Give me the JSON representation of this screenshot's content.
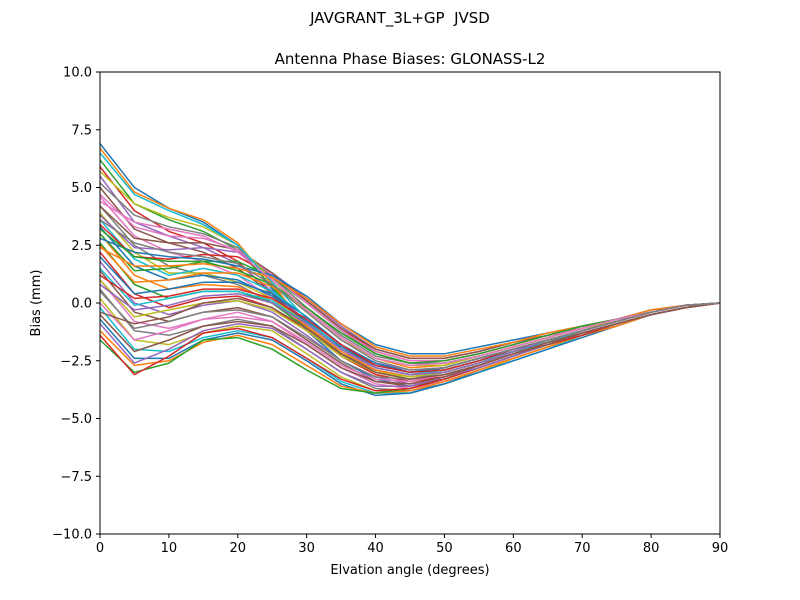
{
  "figure_title": "JAVGRANT_3L+GP  JVSD",
  "chart_data": {
    "type": "line",
    "title": "Antenna Phase Biases: GLONASS-L2",
    "xlabel": "Elvation angle (degrees)",
    "ylabel": "Bias (mm)",
    "xlim": [
      0,
      90
    ],
    "ylim": [
      -10,
      10
    ],
    "xticks": [
      0,
      10,
      20,
      30,
      40,
      50,
      60,
      70,
      80,
      90
    ],
    "xtick_labels": [
      "0",
      "10",
      "20",
      "30",
      "40",
      "50",
      "60",
      "70",
      "80",
      "90"
    ],
    "yticks": [
      -10,
      -7.5,
      -5,
      -2.5,
      0,
      2.5,
      5,
      7.5,
      10
    ],
    "ytick_labels": [
      "−10.0",
      "−7.5",
      "−5.0",
      "−2.5",
      "0.0",
      "2.5",
      "5.0",
      "7.5",
      "10.0"
    ],
    "grid": false,
    "legend": false,
    "colors": [
      "#1f77b4",
      "#ff7f0e",
      "#2ca02c",
      "#d62728",
      "#9467bd",
      "#8c564b",
      "#e377c2",
      "#7f7f7f",
      "#bcbd22",
      "#17becf"
    ],
    "x": [
      0,
      5,
      10,
      15,
      20,
      25,
      30,
      35,
      40,
      45,
      50,
      55,
      60,
      65,
      70,
      75,
      80,
      85,
      90
    ],
    "series": [
      {
        "values": [
          6.9,
          5.0,
          4.1,
          3.5,
          2.5,
          0.6,
          -1.2,
          -2.5,
          -3.3,
          -3.6,
          -3.3,
          -2.8,
          -2.3,
          -1.8,
          -1.3,
          -0.9,
          -0.5,
          -0.2,
          0.0
        ]
      },
      {
        "values": [
          6.7,
          4.8,
          4.1,
          3.6,
          2.6,
          0.8,
          -1.0,
          -2.3,
          -3.1,
          -3.4,
          -3.2,
          -2.7,
          -2.2,
          -1.8,
          -1.3,
          -0.9,
          -0.5,
          -0.2,
          0.0
        ]
      },
      {
        "values": [
          6.2,
          4.3,
          3.6,
          3.1,
          2.3,
          0.7,
          -1.0,
          -2.2,
          -3.0,
          -3.3,
          -3.1,
          -2.7,
          -2.2,
          -1.7,
          -1.3,
          -0.9,
          -0.5,
          -0.2,
          0.0
        ]
      },
      {
        "values": [
          5.9,
          4.0,
          3.1,
          2.6,
          1.8,
          0.4,
          -1.1,
          -2.2,
          -2.9,
          -3.2,
          -3.0,
          -2.6,
          -2.1,
          -1.7,
          -1.2,
          -0.8,
          -0.4,
          -0.1,
          0.0
        ]
      },
      {
        "values": [
          5.5,
          3.5,
          2.9,
          2.4,
          1.7,
          0.5,
          -0.8,
          -1.9,
          -2.6,
          -2.9,
          -2.8,
          -2.4,
          -2.0,
          -1.6,
          -1.2,
          -0.8,
          -0.4,
          -0.1,
          0.0
        ]
      },
      {
        "values": [
          5.0,
          3.2,
          2.6,
          2.2,
          1.5,
          0.4,
          -0.9,
          -2.0,
          -2.7,
          -3.0,
          -2.8,
          -2.4,
          -2.0,
          -1.6,
          -1.2,
          -0.8,
          -0.4,
          -0.1,
          0.0
        ]
      },
      {
        "values": [
          4.6,
          2.9,
          2.2,
          1.8,
          1.2,
          0.2,
          -1.0,
          -2.1,
          -2.8,
          -3.1,
          -2.9,
          -2.5,
          -2.0,
          -1.6,
          -1.2,
          -0.8,
          -0.4,
          -0.1,
          0.0
        ]
      },
      {
        "values": [
          4.2,
          2.5,
          1.6,
          1.2,
          0.8,
          0.0,
          -1.1,
          -2.2,
          -2.9,
          -3.2,
          -3.0,
          -2.6,
          -2.1,
          -1.7,
          -1.2,
          -0.8,
          -0.4,
          -0.1,
          0.0
        ]
      },
      {
        "values": [
          3.9,
          2.2,
          1.3,
          1.3,
          0.9,
          0.2,
          -0.9,
          -2.0,
          -2.8,
          -3.1,
          -2.9,
          -2.5,
          -2.1,
          -1.6,
          -1.2,
          -0.8,
          -0.4,
          -0.1,
          0.0
        ]
      },
      {
        "values": [
          3.6,
          1.9,
          1.2,
          1.5,
          1.2,
          0.5,
          -0.6,
          -1.8,
          -2.6,
          -3.0,
          -2.8,
          -2.4,
          -2.0,
          -1.6,
          -1.2,
          -0.8,
          -0.4,
          -0.1,
          0.0
        ]
      },
      {
        "values": [
          3.3,
          1.6,
          1.0,
          1.2,
          1.0,
          0.3,
          -0.8,
          -1.9,
          -2.7,
          -3.0,
          -2.9,
          -2.5,
          -2.0,
          -1.6,
          -1.2,
          -0.8,
          -0.4,
          -0.1,
          0.0
        ]
      },
      {
        "values": [
          3.0,
          1.2,
          0.6,
          0.8,
          0.7,
          0.1,
          -1.0,
          -2.1,
          -2.9,
          -3.2,
          -3.0,
          -2.6,
          -2.1,
          -1.7,
          -1.2,
          -0.8,
          -0.4,
          -0.1,
          0.0
        ]
      },
      {
        "values": [
          2.6,
          0.8,
          0.2,
          0.5,
          0.5,
          0.0,
          -1.1,
          -2.2,
          -3.0,
          -3.3,
          -3.1,
          -2.7,
          -2.2,
          -1.7,
          -1.3,
          -0.9,
          -0.5,
          -0.2,
          0.0
        ]
      },
      {
        "values": [
          2.2,
          0.4,
          -0.2,
          0.2,
          0.3,
          -0.2,
          -1.2,
          -2.3,
          -3.1,
          -3.4,
          -3.2,
          -2.7,
          -2.2,
          -1.8,
          -1.3,
          -0.9,
          -0.5,
          -0.2,
          0.0
        ]
      },
      {
        "values": [
          1.8,
          0.0,
          -0.5,
          -0.1,
          0.1,
          -0.4,
          -1.4,
          -2.5,
          -3.2,
          -3.5,
          -3.3,
          -2.8,
          -2.3,
          -1.8,
          -1.3,
          -0.9,
          -0.5,
          -0.2,
          0.0
        ]
      },
      {
        "values": [
          1.4,
          -0.4,
          -0.8,
          -0.4,
          -0.2,
          -0.6,
          -1.6,
          -2.6,
          -3.4,
          -3.6,
          -3.3,
          -2.8,
          -2.3,
          -1.8,
          -1.3,
          -0.9,
          -0.5,
          -0.2,
          0.0
        ]
      },
      {
        "values": [
          1.0,
          -0.8,
          -1.1,
          -0.7,
          -0.4,
          -0.8,
          -1.8,
          -2.8,
          -3.5,
          -3.7,
          -3.4,
          -2.9,
          -2.4,
          -1.9,
          -1.4,
          -0.9,
          -0.5,
          -0.2,
          0.0
        ]
      },
      {
        "values": [
          0.6,
          -1.2,
          -1.4,
          -1.0,
          -0.7,
          -1.0,
          -2.0,
          -3.0,
          -3.7,
          -3.8,
          -3.5,
          -2.9,
          -2.4,
          -1.9,
          -1.4,
          -0.9,
          -0.5,
          -0.2,
          0.0
        ]
      },
      {
        "values": [
          0.2,
          -1.6,
          -1.8,
          -1.3,
          -1.0,
          -1.2,
          -2.2,
          -3.2,
          -3.8,
          -3.9,
          -3.5,
          -3.0,
          -2.4,
          -1.9,
          -1.4,
          -0.9,
          -0.5,
          -0.2,
          0.0
        ]
      },
      {
        "values": [
          -0.2,
          -2.0,
          -2.1,
          -1.5,
          -1.2,
          -1.5,
          -2.4,
          -3.4,
          -3.9,
          -3.9,
          -3.5,
          -3.0,
          -2.5,
          -2.0,
          -1.4,
          -1.0,
          -0.5,
          -0.2,
          0.0
        ]
      },
      {
        "values": [
          -0.7,
          -2.4,
          -2.4,
          -1.6,
          -1.3,
          -1.6,
          -2.5,
          -3.5,
          -4.0,
          -3.9,
          -3.5,
          -3.0,
          -2.5,
          -2.0,
          -1.5,
          -1.0,
          -0.5,
          -0.2,
          0.0
        ]
      },
      {
        "values": [
          -1.2,
          -2.7,
          -2.5,
          -1.7,
          -1.4,
          -1.8,
          -2.7,
          -3.6,
          -3.9,
          -3.8,
          -3.4,
          -2.9,
          -2.4,
          -1.9,
          -1.4,
          -1.0,
          -0.5,
          -0.2,
          0.0
        ]
      },
      {
        "values": [
          -1.6,
          -3.0,
          -2.6,
          -1.6,
          -1.5,
          -2.0,
          -2.9,
          -3.7,
          -3.9,
          -3.7,
          -3.3,
          -2.8,
          -2.3,
          -1.8,
          -1.4,
          -0.9,
          -0.5,
          -0.2,
          0.0
        ]
      },
      {
        "values": [
          -1.4,
          -3.1,
          -2.3,
          -1.3,
          -1.1,
          -1.5,
          -2.4,
          -3.3,
          -3.8,
          -3.7,
          -3.3,
          -2.8,
          -2.3,
          -1.8,
          -1.4,
          -0.9,
          -0.5,
          -0.2,
          0.0
        ]
      },
      {
        "values": [
          -0.9,
          -2.6,
          -2.0,
          -1.2,
          -0.9,
          -1.1,
          -2.0,
          -3.0,
          -3.6,
          -3.6,
          -3.2,
          -2.8,
          -2.3,
          -1.8,
          -1.3,
          -0.9,
          -0.5,
          -0.2,
          0.0
        ]
      },
      {
        "values": [
          -0.5,
          -2.1,
          -1.6,
          -1.0,
          -0.8,
          -1.0,
          -1.8,
          -2.8,
          -3.4,
          -3.5,
          -3.2,
          -2.7,
          -2.2,
          -1.8,
          -1.3,
          -0.9,
          -0.5,
          -0.2,
          0.0
        ]
      },
      {
        "values": [
          0.0,
          -1.6,
          -1.2,
          -0.7,
          -0.6,
          -0.8,
          -1.7,
          -2.7,
          -3.3,
          -3.4,
          -3.1,
          -2.7,
          -2.2,
          -1.7,
          -1.3,
          -0.9,
          -0.5,
          -0.2,
          0.0
        ]
      },
      {
        "values": [
          0.5,
          -1.1,
          -0.8,
          -0.4,
          -0.3,
          -0.6,
          -1.5,
          -2.5,
          -3.2,
          -3.3,
          -3.0,
          -2.6,
          -2.2,
          -1.7,
          -1.3,
          -0.9,
          -0.5,
          -0.2,
          0.0
        ]
      },
      {
        "values": [
          1.0,
          -0.6,
          -0.3,
          0.0,
          0.1,
          -0.3,
          -1.2,
          -2.3,
          -3.0,
          -3.2,
          -3.0,
          -2.6,
          -2.1,
          -1.7,
          -1.2,
          -0.8,
          -0.4,
          -0.1,
          0.0
        ]
      },
      {
        "values": [
          1.5,
          -0.1,
          0.2,
          0.5,
          0.5,
          0.1,
          -0.9,
          -2.0,
          -2.8,
          -3.1,
          -2.9,
          -2.5,
          -2.1,
          -1.6,
          -1.2,
          -0.8,
          -0.4,
          -0.1,
          0.0
        ]
      },
      {
        "values": [
          2.0,
          0.4,
          0.6,
          0.9,
          0.9,
          0.4,
          -0.6,
          -1.8,
          -2.6,
          -3.0,
          -2.8,
          -2.4,
          -2.0,
          -1.6,
          -1.2,
          -0.8,
          -0.4,
          -0.1,
          0.0
        ]
      },
      {
        "values": [
          2.5,
          0.9,
          1.0,
          1.3,
          1.3,
          0.7,
          -0.3,
          -1.5,
          -2.4,
          -2.8,
          -2.7,
          -2.3,
          -1.9,
          -1.5,
          -1.1,
          -0.7,
          -0.4,
          -0.1,
          0.0
        ]
      },
      {
        "values": [
          3.0,
          1.4,
          1.5,
          1.8,
          1.8,
          1.1,
          0.0,
          -1.2,
          -2.2,
          -2.6,
          -2.6,
          -2.3,
          -1.9,
          -1.5,
          -1.1,
          -0.7,
          -0.4,
          -0.1,
          0.0
        ]
      },
      {
        "values": [
          3.4,
          2.0,
          1.9,
          2.1,
          2.0,
          1.2,
          0.1,
          -1.1,
          -2.1,
          -2.5,
          -2.5,
          -2.2,
          -1.8,
          -1.4,
          -1.1,
          -0.7,
          -0.4,
          -0.1,
          0.0
        ]
      },
      {
        "values": [
          3.8,
          2.4,
          2.3,
          2.4,
          2.2,
          1.3,
          0.2,
          -1.0,
          -2.0,
          -2.4,
          -2.4,
          -2.1,
          -1.7,
          -1.4,
          -1.0,
          -0.7,
          -0.4,
          -0.1,
          0.0
        ]
      },
      {
        "values": [
          4.2,
          2.8,
          2.6,
          2.6,
          2.3,
          1.3,
          0.1,
          -1.1,
          -2.0,
          -2.4,
          -2.4,
          -2.1,
          -1.7,
          -1.4,
          -1.0,
          -0.7,
          -0.4,
          -0.1,
          0.0
        ]
      },
      {
        "values": [
          4.7,
          3.3,
          2.9,
          2.8,
          2.3,
          1.2,
          0.0,
          -1.2,
          -2.1,
          -2.5,
          -2.5,
          -2.2,
          -1.8,
          -1.4,
          -1.1,
          -0.7,
          -0.4,
          -0.1,
          0.0
        ]
      },
      {
        "values": [
          5.2,
          3.8,
          3.3,
          3.0,
          2.4,
          1.1,
          -0.2,
          -1.4,
          -2.3,
          -2.6,
          -2.6,
          -2.3,
          -1.9,
          -1.5,
          -1.1,
          -0.7,
          -0.4,
          -0.1,
          0.0
        ]
      },
      {
        "values": [
          5.7,
          4.3,
          3.7,
          3.3,
          2.5,
          1.0,
          -0.4,
          -1.6,
          -2.4,
          -2.7,
          -2.7,
          -2.3,
          -1.9,
          -1.5,
          -1.1,
          -0.8,
          -0.4,
          -0.1,
          0.0
        ]
      },
      {
        "values": [
          6.5,
          4.7,
          4.0,
          3.4,
          2.5,
          0.9,
          -0.7,
          -2.0,
          -2.8,
          -3.1,
          -3.0,
          -2.6,
          -2.1,
          -1.7,
          -1.2,
          -0.8,
          -0.4,
          -0.1,
          0.0
        ]
      },
      {
        "values": [
          2.8,
          2.2,
          2.0,
          1.9,
          1.6,
          1.2,
          0.3,
          -0.9,
          -1.8,
          -2.2,
          -2.2,
          -1.9,
          -1.6,
          -1.3,
          -1.0,
          -0.7,
          -0.3,
          -0.1,
          0.0
        ]
      },
      {
        "values": [
          2.4,
          1.6,
          1.6,
          1.7,
          1.5,
          1.1,
          0.2,
          -0.9,
          -1.9,
          -2.3,
          -2.3,
          -2.0,
          -1.7,
          -1.3,
          -1.0,
          -0.7,
          -0.3,
          -0.1,
          0.0
        ]
      },
      {
        "values": [
          3.2,
          2.0,
          1.8,
          1.8,
          1.4,
          0.8,
          -0.2,
          -1.3,
          -2.2,
          -2.6,
          -2.5,
          -2.2,
          -1.8,
          -1.4,
          -1.0,
          -0.7,
          -0.4,
          -0.1,
          0.0
        ]
      },
      {
        "values": [
          1.2,
          0.2,
          0.3,
          0.6,
          0.6,
          0.2,
          -0.7,
          -1.8,
          -2.7,
          -3.0,
          -2.9,
          -2.5,
          -2.0,
          -1.6,
          -1.2,
          -0.8,
          -0.4,
          -0.1,
          0.0
        ]
      },
      {
        "values": [
          0.8,
          -0.3,
          -0.1,
          0.3,
          0.4,
          0.0,
          -0.9,
          -2.0,
          -2.8,
          -3.1,
          -3.0,
          -2.6,
          -2.1,
          -1.6,
          -1.2,
          -0.8,
          -0.4,
          -0.1,
          0.0
        ]
      },
      {
        "values": [
          -0.4,
          -0.9,
          -0.6,
          0.0,
          0.2,
          -0.2,
          -1.1,
          -2.2,
          -3.0,
          -3.3,
          -3.1,
          -2.7,
          -2.2,
          -1.7,
          -1.3,
          -0.9,
          -0.5,
          -0.2,
          0.0
        ]
      },
      {
        "values": [
          4.4,
          3.5,
          3.2,
          2.9,
          2.2,
          1.0,
          -0.3,
          -1.5,
          -2.4,
          -2.7,
          -2.6,
          -2.3,
          -1.9,
          -1.5,
          -1.1,
          -0.7,
          -0.4,
          -0.1,
          0.0
        ]
      },
      {
        "values": [
          3.6,
          2.6,
          2.2,
          2.0,
          1.7,
          0.8,
          -0.4,
          -1.6,
          -2.5,
          -2.9,
          -2.8,
          -2.4,
          -2.0,
          -1.6,
          -1.2,
          -0.8,
          -0.4,
          -0.1,
          0.0
        ]
      }
    ]
  }
}
